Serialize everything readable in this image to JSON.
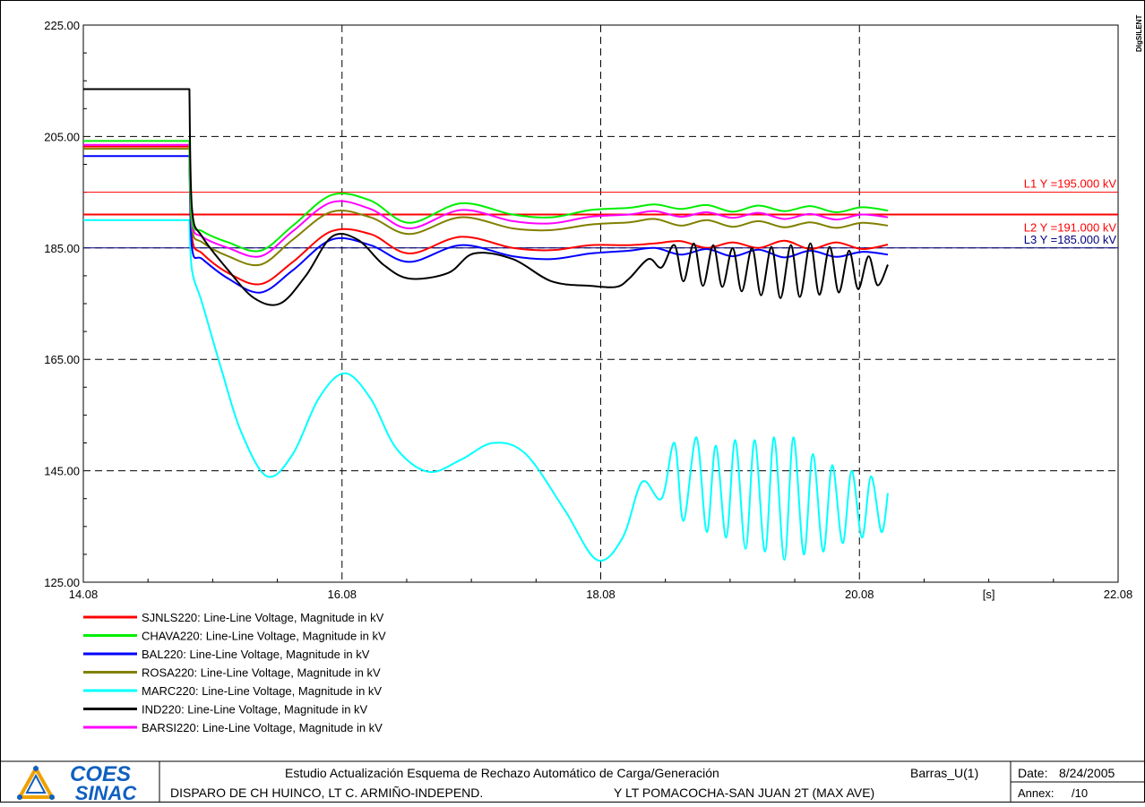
{
  "brand": {
    "badge": "DIgSILENT",
    "logo_top": "COES",
    "logo_bottom": "SINAC"
  },
  "footer": {
    "study_title": "Estudio Actualización Esquema de Rechazo Automático de Carga/Generación",
    "page_id": "Barras_U(1)",
    "date_label": "Date:",
    "date_value": "8/24/2005",
    "case_left": "DISPARO DE CH HUINCO, LT C. ARMIÑO-INDEPEND.",
    "case_right": "Y LT POMACOCHA-SAN JUAN 2T (MAX AVE)",
    "annex_label": "Annex:",
    "annex_value": "/10"
  },
  "chart_data": {
    "type": "line",
    "title": "",
    "xlabel": "",
    "x_unit": "[s]",
    "ylabel": "",
    "xlim": [
      14.08,
      22.08
    ],
    "ylim": [
      125.0,
      225.0
    ],
    "x_ticks": [
      "14.08",
      "16.08",
      "18.08",
      "20.08",
      "22.08"
    ],
    "y_ticks": [
      "125.00",
      "145.00",
      "165.00",
      "185.00",
      "205.00",
      "225.00"
    ],
    "grid": true,
    "legend_position": "bottom-left",
    "reference_lines": [
      {
        "label": "L1 Y =195.000 kV",
        "y": 195.0,
        "color": "#ff0000"
      },
      {
        "label": "L2 Y =191.000 kV",
        "y": 191.0,
        "color": "#ff0000"
      },
      {
        "label": "L3 Y =185.000 kV",
        "y": 185.0,
        "color": "#000080"
      }
    ],
    "series": [
      {
        "name": "SJNLS220: Line-Line Voltage, Magnitude in kV",
        "color": "#ff0000",
        "x": [
          14.08,
          14.9,
          14.9,
          14.92,
          15.0,
          15.2,
          15.45,
          15.7,
          16.0,
          16.3,
          16.6,
          17.0,
          17.4,
          17.7,
          18.0,
          18.3,
          18.5,
          18.7,
          18.9,
          19.1,
          19.3,
          19.5,
          19.7,
          19.9,
          20.1,
          20.3
        ],
        "y": [
          203.2,
          203.2,
          203.2,
          187.0,
          184.0,
          180.5,
          178.5,
          182.5,
          188.0,
          187.5,
          184.0,
          187.0,
          185.0,
          184.6,
          185.5,
          185.5,
          185.8,
          186.2,
          185.0,
          186.0,
          185.0,
          186.3,
          184.8,
          186.0,
          184.8,
          185.6
        ]
      },
      {
        "name": "CHAVA220: Line-Line Voltage, Magnitude in kV",
        "color": "#00ee00",
        "x": [
          14.08,
          14.9,
          14.9,
          14.92,
          15.0,
          15.2,
          15.45,
          15.7,
          16.0,
          16.3,
          16.6,
          17.0,
          17.4,
          17.7,
          18.0,
          18.3,
          18.5,
          18.7,
          18.9,
          19.1,
          19.3,
          19.5,
          19.7,
          19.9,
          20.1,
          20.3
        ],
        "y": [
          204.2,
          204.2,
          204.2,
          190.0,
          188.0,
          186.0,
          184.5,
          189.0,
          194.5,
          193.5,
          189.5,
          193.0,
          191.0,
          190.5,
          191.8,
          192.2,
          192.8,
          192.0,
          192.7,
          191.5,
          192.6,
          191.6,
          192.5,
          191.4,
          192.3,
          191.7
        ]
      },
      {
        "name": "BAL220: Line-Line Voltage, Magnitude in kV",
        "color": "#0000ff",
        "x": [
          14.08,
          14.9,
          14.9,
          14.92,
          15.0,
          15.2,
          15.45,
          15.7,
          16.0,
          16.3,
          16.6,
          17.0,
          17.4,
          17.7,
          18.0,
          18.3,
          18.5,
          18.7,
          18.9,
          19.1,
          19.3,
          19.5,
          19.7,
          19.9,
          20.1,
          20.3
        ],
        "y": [
          201.5,
          201.5,
          201.5,
          185.0,
          183.0,
          179.5,
          177.0,
          181.0,
          186.5,
          185.5,
          182.5,
          185.5,
          183.5,
          183.0,
          184.0,
          184.5,
          185.0,
          183.8,
          184.8,
          183.5,
          184.7,
          183.3,
          184.5,
          183.4,
          184.3,
          183.8
        ]
      },
      {
        "name": "ROSA220: Line-Line Voltage, Magnitude in kV",
        "color": "#808000",
        "x": [
          14.08,
          14.9,
          14.9,
          14.92,
          15.0,
          15.2,
          15.45,
          15.7,
          16.0,
          16.3,
          16.6,
          17.0,
          17.4,
          17.7,
          18.0,
          18.3,
          18.5,
          18.7,
          18.9,
          19.1,
          19.3,
          19.5,
          19.7,
          19.9,
          20.1,
          20.3
        ],
        "y": [
          202.8,
          202.8,
          202.8,
          188.5,
          186.0,
          183.5,
          182.0,
          186.5,
          191.5,
          190.5,
          187.5,
          190.5,
          188.5,
          188.2,
          189.2,
          189.6,
          190.2,
          189.0,
          190.0,
          188.8,
          189.8,
          188.7,
          189.6,
          188.6,
          189.5,
          189.0
        ]
      },
      {
        "name": "MARC220: Line-Line Voltage, Magnitude in kV",
        "color": "#00ffff",
        "x": [
          14.08,
          14.9,
          14.9,
          14.92,
          15.0,
          15.15,
          15.3,
          15.5,
          15.7,
          15.9,
          16.1,
          16.3,
          16.5,
          16.75,
          17.0,
          17.25,
          17.5,
          17.8,
          18.05,
          18.25,
          18.4,
          18.55,
          18.65,
          18.72,
          18.82,
          18.9,
          18.97,
          19.05,
          19.12,
          19.2,
          19.27,
          19.35,
          19.42,
          19.5,
          19.57,
          19.65,
          19.72,
          19.8,
          19.87,
          19.95,
          20.02,
          20.1,
          20.17,
          20.25,
          20.3
        ],
        "y": [
          190.0,
          190.0,
          190.0,
          181.0,
          175.0,
          163.0,
          152.0,
          144.0,
          148.0,
          158.0,
          162.5,
          158.0,
          149.0,
          144.8,
          147.0,
          150.0,
          148.0,
          138.0,
          129.0,
          133.0,
          143.0,
          140.0,
          150.0,
          136.0,
          151.0,
          134.0,
          149.5,
          133.0,
          150.5,
          131.0,
          150.5,
          130.5,
          151.0,
          129.0,
          151.0,
          130.0,
          148.0,
          130.5,
          146.0,
          132.0,
          145.0,
          133.0,
          144.0,
          134.0,
          141.0
        ]
      },
      {
        "name": "IND220: Line-Line Voltage, Magnitude in kV",
        "color": "#000000",
        "x": [
          14.08,
          14.9,
          14.9,
          14.92,
          15.0,
          15.2,
          15.4,
          15.6,
          15.8,
          16.0,
          16.2,
          16.4,
          16.6,
          16.9,
          17.1,
          17.4,
          17.7,
          18.0,
          18.2,
          18.3,
          18.45,
          18.55,
          18.65,
          18.72,
          18.8,
          18.87,
          18.95,
          19.02,
          19.1,
          19.17,
          19.25,
          19.32,
          19.4,
          19.47,
          19.55,
          19.62,
          19.7,
          19.77,
          19.85,
          19.92,
          20.0,
          20.07,
          20.15,
          20.22,
          20.3
        ],
        "y": [
          213.5,
          213.5,
          213.5,
          192.0,
          187.0,
          181.0,
          176.0,
          175.0,
          180.0,
          187.0,
          186.5,
          182.0,
          179.5,
          180.5,
          184.0,
          183.0,
          179.0,
          178.2,
          178.0,
          179.5,
          183.0,
          181.5,
          185.5,
          179.0,
          185.8,
          178.2,
          185.5,
          178.0,
          185.0,
          177.2,
          185.0,
          176.5,
          185.2,
          176.0,
          185.5,
          176.2,
          185.8,
          176.6,
          185.2,
          177.0,
          184.5,
          177.6,
          183.5,
          178.3,
          182.0
        ]
      },
      {
        "name": "BARSI220: Line-Line Voltage, Magnitude in kV",
        "color": "#ff00ff",
        "x": [
          14.08,
          14.9,
          14.9,
          14.92,
          15.0,
          15.2,
          15.45,
          15.7,
          16.0,
          16.3,
          16.6,
          17.0,
          17.4,
          17.7,
          18.0,
          18.3,
          18.5,
          18.7,
          18.9,
          19.1,
          19.3,
          19.5,
          19.7,
          19.9,
          20.1,
          20.3
        ],
        "y": [
          203.5,
          203.5,
          203.5,
          189.5,
          187.0,
          185.0,
          183.5,
          188.0,
          193.2,
          192.0,
          188.5,
          191.8,
          189.8,
          189.4,
          190.6,
          191.0,
          191.6,
          190.6,
          191.4,
          190.4,
          191.3,
          190.2,
          191.1,
          190.1,
          191.0,
          190.5
        ]
      }
    ]
  }
}
